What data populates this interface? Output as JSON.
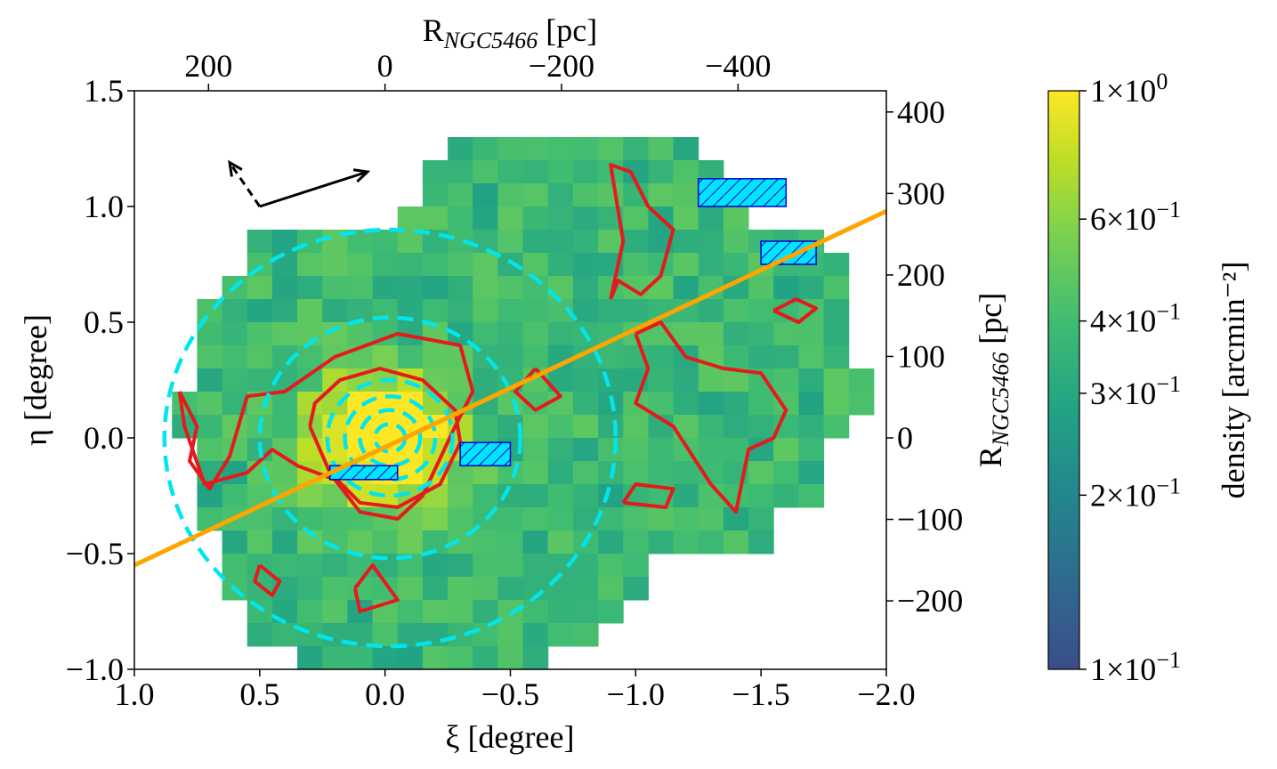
{
  "chart_data": {
    "type": "heatmap",
    "title": "",
    "xlabel": "ξ [degree]",
    "ylabel": "η [degree]",
    "top_label": "R_NGC5466 [pc]",
    "top_label_main": "R",
    "top_label_sub": "NGC5466",
    "top_label_unit": " [pc]",
    "right_label_main": "R",
    "right_label_sub": "NGC5466",
    "right_label_unit": " [pc]",
    "colorbar_label": "density [arcmin⁻²]",
    "xlim": [
      1.0,
      -2.0
    ],
    "ylim": [
      -1.0,
      1.5
    ],
    "x_ticks": [
      {
        "v": 1.0,
        "label": "1.0"
      },
      {
        "v": 0.5,
        "label": "0.5"
      },
      {
        "v": 0.0,
        "label": "0.0"
      },
      {
        "v": -0.5,
        "label": "−0.5"
      },
      {
        "v": -1.0,
        "label": "−1.0"
      },
      {
        "v": -1.5,
        "label": "−1.5"
      },
      {
        "v": -2.0,
        "label": "−2.0"
      }
    ],
    "y_ticks": [
      {
        "v": 1.5,
        "label": "1.5"
      },
      {
        "v": 1.0,
        "label": "1.0"
      },
      {
        "v": 0.5,
        "label": "0.5"
      },
      {
        "v": 0.0,
        "label": "0.0"
      },
      {
        "v": -0.5,
        "label": "−0.5"
      },
      {
        "v": -1.0,
        "label": "−1.0"
      }
    ],
    "top_ticks_pc": [
      {
        "v": 200,
        "label": "200"
      },
      {
        "v": 0,
        "label": "0"
      },
      {
        "v": -200,
        "label": "−200"
      },
      {
        "v": -400,
        "label": "−400"
      }
    ],
    "right_ticks_pc": [
      {
        "v": 400,
        "label": "400"
      },
      {
        "v": 300,
        "label": "300"
      },
      {
        "v": 200,
        "label": "200"
      },
      {
        "v": 100,
        "label": "100"
      },
      {
        "v": 0,
        "label": "0"
      },
      {
        "v": -100,
        "label": "−100"
      },
      {
        "v": -200,
        "label": "−200"
      }
    ],
    "pc_per_degree": 284,
    "colorbar": {
      "scale": "log",
      "range": [
        0.1,
        1.0
      ],
      "colormap": "viridis",
      "ticks": [
        {
          "v": 1.0,
          "base": "1×10",
          "exp": "0"
        },
        {
          "v": 0.6,
          "base": "6×10",
          "exp": "−1"
        },
        {
          "v": 0.4,
          "base": "4×10",
          "exp": "−1"
        },
        {
          "v": 0.3,
          "base": "3×10",
          "exp": "−1"
        },
        {
          "v": 0.2,
          "base": "2×10",
          "exp": "−1"
        },
        {
          "v": 0.1,
          "base": "1×10",
          "exp": "−1"
        }
      ]
    },
    "grid": {
      "xi_start": 0.9,
      "eta_start": 1.25,
      "cell": 0.1
    },
    "density_rows": [
      "............xxxxxxxxxx.......",
      "...........xxxxxxxxxxxx......",
      "...........xxxxxxxxxxxxx.....",
      "..........xxxxxxxxxxxxxx.....",
      "....xxxxxxxxxxxxxxxxxxxxxxx..",
      "....xxxxxxxxxxxxxxxxxxxxxxxx.",
      "...xxxxxxxxxxxxxxxxxxxxxxxxx.",
      "..xxxxxxxxxxxxxxxxxxxxxxxxxx.",
      "..xxxxxxxxxxxxxxxxxxxxxxxxxx.",
      "..xxxxxxxxxxxxxxxxxxxxxxxxxx.",
      "..xxxxxxxxxxxxxxxxxxxxxxxxxxx",
      ".xxxxxxxxxxxxxxxxxxxxxxxxxxxx",
      ".xxxxxxxxxxxxxxxxxxxxxxxxxxx.",
      "..xxxxxxxxxxxxxxxxxxxxxxxxx..",
      "..xxxxxxxxxxxxxxxxxxxxxxxxx..",
      "..xxxxxxxxxxxxxxxxxxxxxxxxx..",
      "..xxxxxxxxxxxxxxxxxxxxxxx....",
      "...xxxxxxxxxxxxxxxxxxxxxx....",
      "...xxxxxxxxxxxxxxxxx.........",
      "...xxxxxxxxxxxxxxxxx.........",
      "....xxxxxxxxxxxxxxx..........",
      "....xxxxxxxxxxxxxx...........",
      "......xxxxxxxxxx.............",
      "......xxxxxxxxx.............."
    ],
    "density_model": {
      "background": 0.38,
      "cluster_peak": 2.8,
      "cluster_center": [
        0.0,
        0.0
      ],
      "cluster_sigma": 0.18,
      "noise": 0.12
    },
    "major_axis_line": {
      "from": [
        1.0,
        -0.55
      ],
      "to": [
        -2.0,
        0.98
      ],
      "color": "#ffa500"
    },
    "dashed_circles": {
      "center": [
        -0.02,
        0.0
      ],
      "radii": [
        0.06,
        0.12,
        0.18,
        0.25,
        0.52,
        0.9
      ],
      "color": "#00e5ee"
    },
    "masked_regions": [
      {
        "xi": [
          0.22,
          -0.05
        ],
        "eta": [
          -0.18,
          -0.12
        ]
      },
      {
        "xi": [
          -0.3,
          -0.5
        ],
        "eta": [
          -0.12,
          -0.02
        ]
      },
      {
        "xi": [
          -1.25,
          -1.6
        ],
        "eta": [
          1.0,
          1.12
        ]
      },
      {
        "xi": [
          -1.5,
          -1.72
        ],
        "eta": [
          0.75,
          0.85
        ]
      }
    ],
    "direction_arrows": {
      "origin": [
        0.5,
        1.0
      ],
      "solid_to": [
        0.07,
        1.15
      ],
      "dashed_to": [
        0.62,
        1.19
      ]
    },
    "contours": [
      {
        "level": 0.5,
        "points": [
          [
            0.82,
            0.2
          ],
          [
            0.75,
            0.05
          ],
          [
            0.78,
            -0.1
          ],
          [
            0.7,
            -0.22
          ],
          [
            0.62,
            -0.08
          ],
          [
            0.55,
            0.18
          ],
          [
            0.4,
            0.2
          ],
          [
            0.2,
            0.35
          ],
          [
            -0.05,
            0.45
          ],
          [
            -0.3,
            0.4
          ],
          [
            -0.35,
            0.2
          ],
          [
            -0.28,
            0.05
          ],
          [
            -0.15,
            -0.25
          ],
          [
            -0.05,
            -0.35
          ],
          [
            0.1,
            -0.32
          ],
          [
            0.2,
            -0.18
          ],
          [
            0.35,
            -0.12
          ],
          [
            0.45,
            -0.05
          ],
          [
            0.55,
            -0.15
          ],
          [
            0.72,
            -0.2
          ],
          [
            0.8,
            0.05
          ],
          [
            0.82,
            0.2
          ]
        ]
      },
      {
        "level": 0.8,
        "points": [
          [
            0.3,
            0.05
          ],
          [
            0.28,
            0.15
          ],
          [
            0.18,
            0.25
          ],
          [
            0.02,
            0.3
          ],
          [
            -0.15,
            0.25
          ],
          [
            -0.28,
            0.12
          ],
          [
            -0.3,
            -0.02
          ],
          [
            -0.22,
            -0.2
          ],
          [
            -0.05,
            -0.3
          ],
          [
            0.1,
            -0.28
          ],
          [
            0.22,
            -0.15
          ],
          [
            0.3,
            0.05
          ]
        ]
      },
      {
        "level": 0.5,
        "points": [
          [
            -0.9,
            0.6
          ],
          [
            -0.95,
            0.85
          ],
          [
            -0.9,
            1.18
          ],
          [
            -0.98,
            1.15
          ],
          [
            -1.05,
            1.0
          ],
          [
            -1.15,
            0.9
          ],
          [
            -1.1,
            0.7
          ],
          [
            -1.02,
            0.62
          ],
          [
            -0.93,
            0.68
          ],
          [
            -0.9,
            0.6
          ]
        ]
      },
      {
        "level": 0.5,
        "points": [
          [
            -1.0,
            0.45
          ],
          [
            -1.05,
            0.3
          ],
          [
            -1.0,
            0.15
          ],
          [
            -1.15,
            0.05
          ],
          [
            -1.3,
            -0.2
          ],
          [
            -1.4,
            -0.32
          ],
          [
            -1.45,
            -0.05
          ],
          [
            -1.55,
            0.0
          ],
          [
            -1.6,
            0.12
          ],
          [
            -1.5,
            0.28
          ],
          [
            -1.35,
            0.3
          ],
          [
            -1.2,
            0.35
          ],
          [
            -1.1,
            0.5
          ],
          [
            -1.0,
            0.45
          ]
        ]
      },
      {
        "level": 0.5,
        "points": [
          [
            0.5,
            -0.55
          ],
          [
            0.42,
            -0.62
          ],
          [
            0.45,
            -0.68
          ],
          [
            0.52,
            -0.62
          ],
          [
            0.5,
            -0.55
          ]
        ]
      },
      {
        "level": 0.5,
        "points": [
          [
            -0.6,
            0.3
          ],
          [
            -0.52,
            0.2
          ],
          [
            -0.6,
            0.12
          ],
          [
            -0.7,
            0.18
          ],
          [
            -0.6,
            0.3
          ]
        ]
      },
      {
        "level": 0.5,
        "points": [
          [
            -1.55,
            0.55
          ],
          [
            -1.65,
            0.5
          ],
          [
            -1.72,
            0.56
          ],
          [
            -1.64,
            0.6
          ],
          [
            -1.55,
            0.55
          ]
        ]
      },
      {
        "level": 0.5,
        "points": [
          [
            -0.95,
            -0.28
          ],
          [
            -1.0,
            -0.2
          ],
          [
            -1.15,
            -0.22
          ],
          [
            -1.12,
            -0.3
          ],
          [
            -0.95,
            -0.28
          ]
        ]
      },
      {
        "level": 0.5,
        "points": [
          [
            0.12,
            -0.65
          ],
          [
            0.05,
            -0.55
          ],
          [
            -0.05,
            -0.7
          ],
          [
            0.1,
            -0.75
          ],
          [
            0.12,
            -0.65
          ]
        ]
      }
    ]
  }
}
